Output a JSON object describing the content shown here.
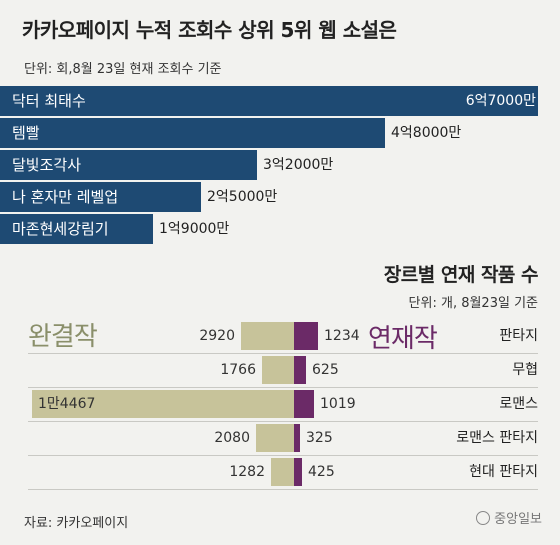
{
  "chart_data": [
    {
      "type": "bar",
      "orientation": "horizontal",
      "title": "카카오페이지 누적 조회수 상위 5위 웹 소설은",
      "unit_note": "단위: 회,8월 23일 현재 조회수 기준",
      "categories": [
        "닥터 최태수",
        "템빨",
        "달빛조각사",
        "나 혼자만 레벨업",
        "마존현세강림기"
      ],
      "values": [
        670000000,
        480000000,
        320000000,
        250000000,
        190000000
      ],
      "value_labels": [
        "6억7000만",
        "4억8000만",
        "3억2000만",
        "2억5000만",
        "1억9000만"
      ],
      "xlim": [
        0,
        670000000
      ],
      "colors": {
        "bar": "#1e4a73"
      }
    },
    {
      "type": "bar",
      "orientation": "horizontal",
      "layout": "diverging",
      "title": "장르별 연재 작품 수",
      "unit_note": "단위: 개, 8월23일 기준",
      "categories": [
        "판타지",
        "무협",
        "로맨스",
        "로맨스 판타지",
        "현대 판타지"
      ],
      "series": [
        {
          "name": "완결작",
          "values": [
            2920,
            1766,
            14467,
            2080,
            1282
          ],
          "labels": [
            "2920",
            "1766",
            "1만4467",
            "2080",
            "1282"
          ],
          "color": "#c7c39a"
        },
        {
          "name": "연재작",
          "values": [
            1234,
            625,
            1019,
            325,
            425
          ],
          "labels": [
            "1234",
            "625",
            "1019",
            "325",
            "425"
          ],
          "color": "#6b2a67"
        }
      ]
    }
  ],
  "source": "자료: 카카오페이지",
  "publisher": "중앙일보"
}
